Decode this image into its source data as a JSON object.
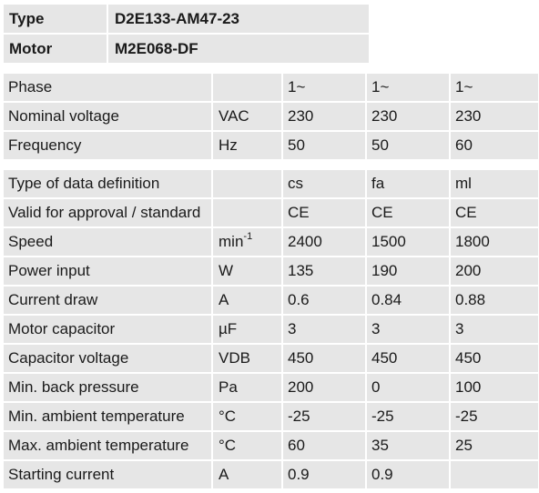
{
  "header": {
    "type_label": "Type",
    "type_value": "D2E133-AM47-23",
    "motor_label": "Motor",
    "motor_value": "M2E068-DF"
  },
  "table1": [
    {
      "label": "Phase",
      "unit": "",
      "v1": "1~",
      "v2": "1~",
      "v3": "1~"
    },
    {
      "label": "Nominal voltage",
      "unit": "VAC",
      "v1": "230",
      "v2": "230",
      "v3": "230"
    },
    {
      "label": "Frequency",
      "unit": "Hz",
      "v1": "50",
      "v2": "50",
      "v3": "60"
    }
  ],
  "table2": [
    {
      "label": "Type of data definition",
      "unit": "",
      "v1": "cs",
      "v2": "fa",
      "v3": "ml"
    },
    {
      "label": "Valid for approval / standard",
      "unit": "",
      "v1": "CE",
      "v2": "CE",
      "v3": "CE"
    },
    {
      "label": "Speed",
      "unit": "min",
      "unit_sup": "-1",
      "v1": "2400",
      "v2": "1500",
      "v3": "1800"
    },
    {
      "label": "Power input",
      "unit": "W",
      "v1": "135",
      "v2": "190",
      "v3": "200"
    },
    {
      "label": "Current draw",
      "unit": "A",
      "v1": "0.6",
      "v2": "0.84",
      "v3": "0.88"
    },
    {
      "label": "Motor capacitor",
      "unit": "µF",
      "v1": "3",
      "v2": "3",
      "v3": "3"
    },
    {
      "label": "Capacitor voltage",
      "unit": "VDB",
      "v1": "450",
      "v2": "450",
      "v3": "450"
    },
    {
      "label": "Min. back pressure",
      "unit": "Pa",
      "v1": "200",
      "v2": "0",
      "v3": "100"
    },
    {
      "label": "Min. ambient temperature",
      "unit": "°C",
      "v1": "-25",
      "v2": "-25",
      "v3": "-25"
    },
    {
      "label": "Max. ambient temperature",
      "unit": "°C",
      "v1": "60",
      "v2": "35",
      "v3": "25"
    },
    {
      "label": "Starting current",
      "unit": "A",
      "v1": "0.9",
      "v2": "0.9",
      "v3": ""
    }
  ]
}
